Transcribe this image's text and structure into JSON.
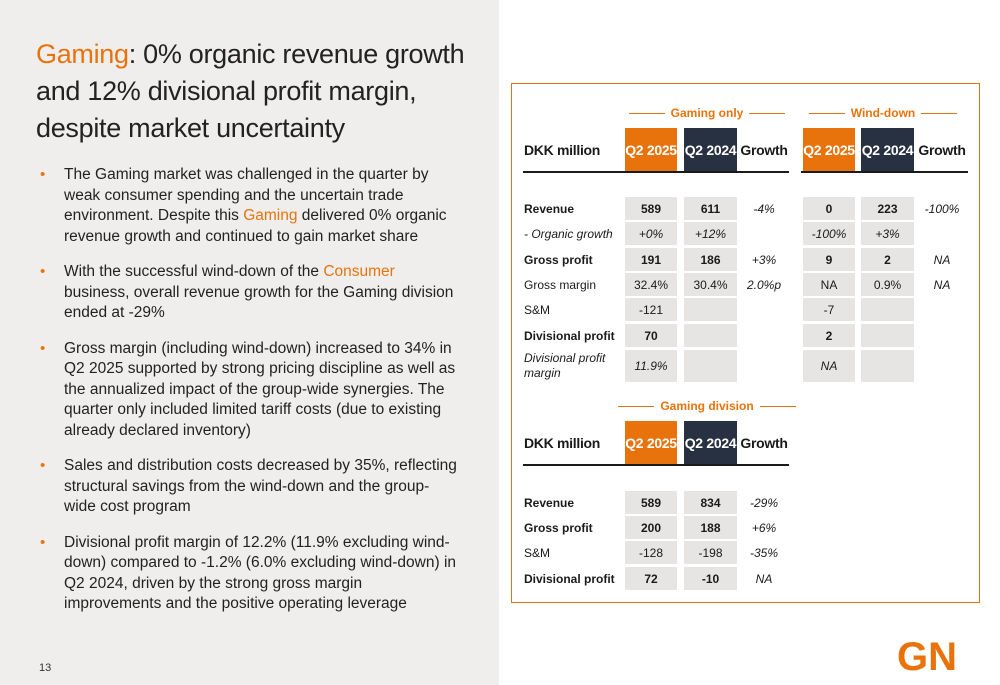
{
  "title": {
    "accent": "Gaming",
    "rest": ": 0% organic revenue growth and 12% divisional profit margin, despite market uncertainty"
  },
  "bullets": [
    {
      "pre": "The Gaming market was challenged in the quarter by weak consumer spending and the uncertain trade environment. Despite this ",
      "hl": "Gaming",
      "post": " delivered 0% organic revenue growth and continued to gain market share"
    },
    {
      "pre": "With the successful wind-down of the ",
      "hl": "Consumer",
      "post": " business, overall revenue growth for the Gaming division ended at -29%"
    },
    {
      "pre": "Gross margin (including wind-down) increased to 34% in Q2 2025 supported by strong pricing discipline as well as the annualized impact of the group-wide synergies. The quarter only included limited tariff costs (due to existing already declared inventory)",
      "hl": "",
      "post": ""
    },
    {
      "pre": "Sales and distribution costs decreased by 35%, reflecting structural savings from the wind-down and the group-wide cost program",
      "hl": "",
      "post": ""
    },
    {
      "pre": "Divisional profit margin of 12.2% (11.9% excluding wind-down) compared to -1.2% (6.0% excluding wind-down) in Q2 2024, driven by the strong gross margin improvements and the positive operating leverage",
      "hl": "",
      "post": ""
    }
  ],
  "bullet_glyph": "•",
  "page_number": "13",
  "logo_text": "GN",
  "colors": {
    "accent": "#e8730c",
    "dark_header": "#283142",
    "shade": "#e6e5e3",
    "left_bg": "#efeeec"
  },
  "table1": {
    "group_gaming_only": "Gaming only",
    "group_wind_down": "Wind-down",
    "headers": {
      "label": "DKK million",
      "q2_2025": "Q2 2025",
      "q2_2024": "Q2 2024",
      "growth": "Growth"
    },
    "rows": [
      {
        "label": "Revenue",
        "style": "bold",
        "g25": "589",
        "g24": "611",
        "gg": "-4%",
        "w25": "0",
        "w24": "223",
        "wg": "-100%"
      },
      {
        "label": "- Organic growth",
        "style": "italic",
        "g25": "+0%",
        "g24": "+12%",
        "gg": "",
        "w25": "-100%",
        "w24": "+3%",
        "wg": ""
      },
      {
        "label": "Gross profit",
        "style": "bold",
        "g25": "191",
        "g24": "186",
        "gg": "+3%",
        "w25": "9",
        "w24": "2",
        "wg": "NA"
      },
      {
        "label": "Gross margin",
        "style": "normal",
        "g25": "32.4%",
        "g24": "30.4%",
        "gg": "2.0%p",
        "w25": "NA",
        "w24": "0.9%",
        "wg": "NA"
      },
      {
        "label": "S&M",
        "style": "normal",
        "g25": "-121",
        "g24": "",
        "gg": "",
        "w25": "-7",
        "w24": "",
        "wg": ""
      },
      {
        "label": "Divisional profit",
        "style": "bold",
        "g25": "70",
        "g24": "",
        "gg": "",
        "w25": "2",
        "w24": "",
        "wg": ""
      },
      {
        "label": "Divisional profit margin",
        "style": "italic",
        "g25": "11.9%",
        "g24": "",
        "gg": "",
        "w25": "NA",
        "w24": "",
        "wg": ""
      }
    ]
  },
  "table2": {
    "group_gaming_division": "Gaming division",
    "headers": {
      "label": "DKK million",
      "q2_2025": "Q2 2025",
      "q2_2024": "Q2 2024",
      "growth": "Growth"
    },
    "rows": [
      {
        "label": "Revenue",
        "style": "bold",
        "g25": "589",
        "g24": "834",
        "gg": "-29%"
      },
      {
        "label": "Gross profit",
        "style": "bold",
        "g25": "200",
        "g24": "188",
        "gg": "+6%"
      },
      {
        "label": "S&M",
        "style": "normal",
        "g25": "-128",
        "g24": "-198",
        "gg": "-35%"
      },
      {
        "label": "Divisional profit",
        "style": "bold",
        "g25": "72",
        "g24": "-10",
        "gg": "NA"
      }
    ]
  }
}
